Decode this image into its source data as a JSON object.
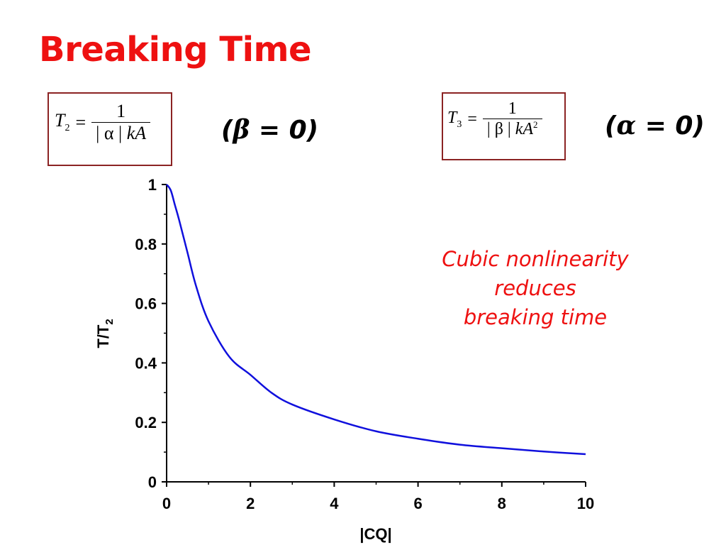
{
  "title": "Breaking Time",
  "formula1": {
    "lhs": "T",
    "lhs_sub": "2",
    "eq": "=",
    "num": "1",
    "den_pre": "| α |",
    "den_var": "kA",
    "den_sup": ""
  },
  "formula2": {
    "lhs": "T",
    "lhs_sub": "3",
    "eq": "=",
    "num": "1",
    "den_pre": "| β |",
    "den_var": "kA",
    "den_sup": "2"
  },
  "condition1": {
    "open": "(",
    "greek": "β",
    "rest": " = 0)"
  },
  "condition2": {
    "open": "(",
    "greek": "α",
    "rest": " = 0)"
  },
  "annotation": {
    "line1": "Cubic nonlinearity",
    "line2": "reduces",
    "line3": "breaking time"
  },
  "colors": {
    "title": "#ee1111",
    "annotation": "#ee1111",
    "curve": "#1010dd",
    "box_border": "#8b2323"
  },
  "chart_data": {
    "type": "line",
    "xlabel": "|CQ|",
    "ylabel": "T/T",
    "ylabel_sub": "2",
    "xlim": [
      0,
      10
    ],
    "ylim": [
      0,
      1
    ],
    "x_ticks": [
      0,
      2,
      4,
      6,
      8,
      10
    ],
    "x_tick_labels": [
      "0",
      "2",
      "4",
      "6",
      "8",
      "10"
    ],
    "y_ticks": [
      0,
      0.2,
      0.4,
      0.6,
      0.8,
      1
    ],
    "y_tick_labels": [
      "0",
      "0.2",
      "0.4",
      "0.6",
      "0.8",
      "1"
    ],
    "grid": false,
    "series": [
      {
        "x": [
          0,
          0.1,
          0.2,
          0.3,
          0.5,
          0.7,
          1.0,
          1.5,
          2.0,
          2.5,
          3.0,
          4.0,
          5.0,
          6.0,
          7.0,
          8.0,
          9.0,
          10.0
        ],
        "y": [
          1.0,
          0.98,
          0.93,
          0.88,
          0.77,
          0.66,
          0.54,
          0.42,
          0.36,
          0.3,
          0.26,
          0.21,
          0.17,
          0.145,
          0.125,
          0.113,
          0.102,
          0.093
        ]
      }
    ]
  }
}
